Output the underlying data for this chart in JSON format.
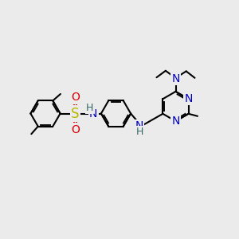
{
  "bg": "#ebebeb",
  "bond_color": "#000000",
  "bond_lw": 1.5,
  "S_color": "#b8b800",
  "O_color": "#dd0000",
  "N_blue": "#0000cc",
  "N_teal": "#336666",
  "figsize": [
    3.0,
    3.0
  ],
  "dpi": 100,
  "xlim": [
    0,
    10
  ],
  "ylim": [
    0,
    10
  ]
}
